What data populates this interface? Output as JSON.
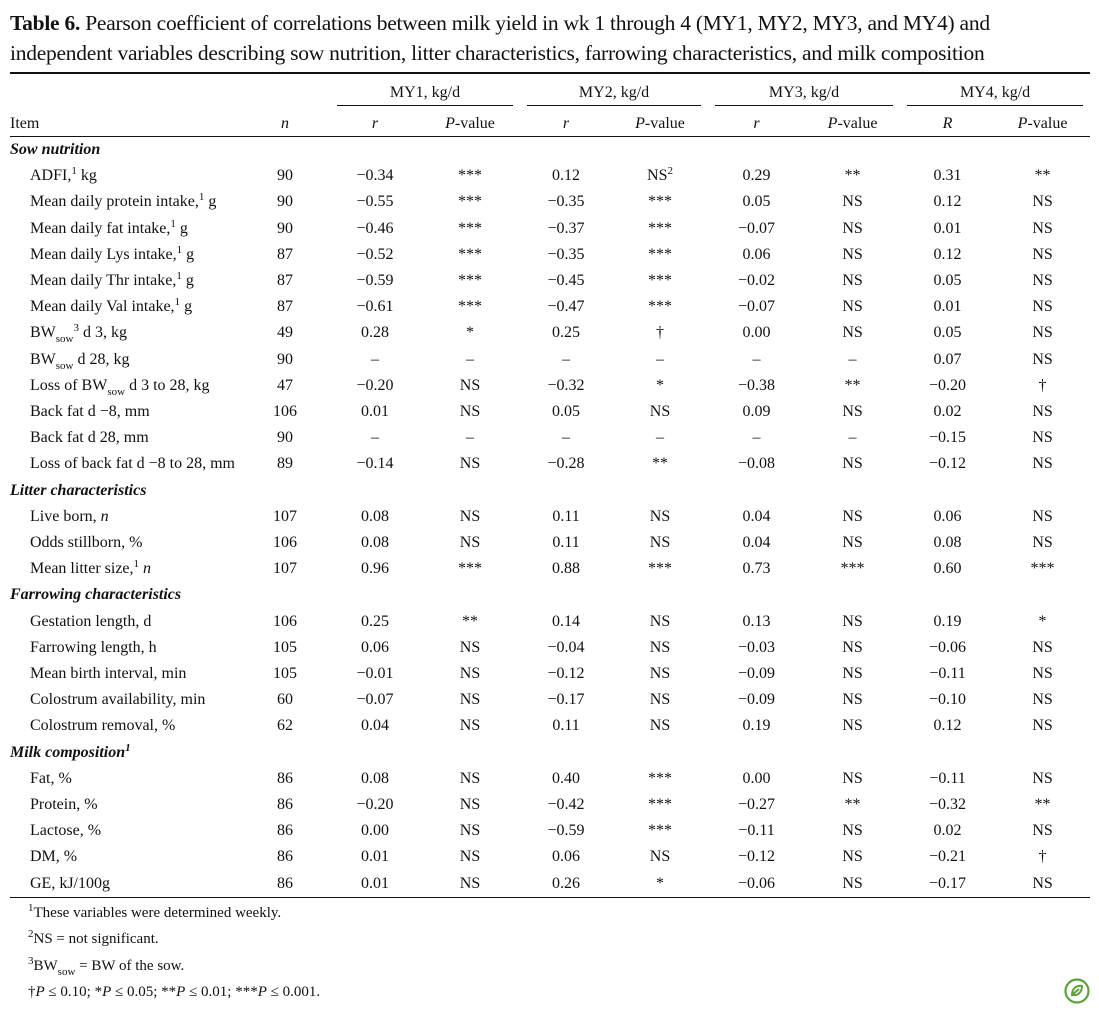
{
  "title": {
    "label": "Table 6.",
    "text": " Pearson coefficient of correlations between milk yield in wk 1 through 4 (MY1, MY2, MY3, and MY4) and independent variables describing sow nutrition, litter characteristics, farrowing characteristics, and milk composition"
  },
  "header": {
    "item": "Item",
    "n": [
      {
        "i": "n"
      }
    ],
    "groups": [
      "MY1, kg/d",
      "MY2, kg/d",
      "MY3, kg/d",
      "MY4, kg/d"
    ],
    "sub": [
      [
        {
          "i": "r"
        }
      ],
      [
        {
          "i": "P"
        },
        {
          "text": "-value"
        }
      ],
      [
        {
          "i": "r"
        }
      ],
      [
        {
          "i": "P"
        },
        {
          "text": "-value"
        }
      ],
      [
        {
          "i": "r"
        }
      ],
      [
        {
          "i": "P"
        },
        {
          "text": "-value"
        }
      ],
      [
        {
          "i": "R"
        }
      ],
      [
        {
          "i": "P"
        },
        {
          "text": "-value"
        }
      ]
    ]
  },
  "sections": [
    {
      "heading": [
        {
          "text": "Sow nutrition"
        }
      ],
      "rows": [
        {
          "item": [
            {
              "text": "ADFI,"
            },
            {
              "sup": "1"
            },
            {
              "text": " kg"
            }
          ],
          "n": "90",
          "cells": [
            "−0.34",
            "***",
            "0.12",
            [
              {
                "text": "NS"
              },
              {
                "sup": "2"
              }
            ],
            "0.29",
            "**",
            "0.31",
            "**"
          ]
        },
        {
          "item": [
            {
              "text": "Mean daily protein intake,"
            },
            {
              "sup": "1"
            },
            {
              "text": " g"
            }
          ],
          "n": "90",
          "cells": [
            "−0.55",
            "***",
            "−0.35",
            "***",
            "0.05",
            "NS",
            "0.12",
            "NS"
          ]
        },
        {
          "item": [
            {
              "text": "Mean daily fat intake,"
            },
            {
              "sup": "1"
            },
            {
              "text": " g"
            }
          ],
          "n": "90",
          "cells": [
            "−0.46",
            "***",
            "−0.37",
            "***",
            "−0.07",
            "NS",
            "0.01",
            "NS"
          ]
        },
        {
          "item": [
            {
              "text": "Mean daily Lys intake,"
            },
            {
              "sup": "1"
            },
            {
              "text": " g"
            }
          ],
          "n": "87",
          "cells": [
            "−0.52",
            "***",
            "−0.35",
            "***",
            "0.06",
            "NS",
            "0.12",
            "NS"
          ]
        },
        {
          "item": [
            {
              "text": "Mean daily Thr intake,"
            },
            {
              "sup": "1"
            },
            {
              "text": " g"
            }
          ],
          "n": "87",
          "cells": [
            "−0.59",
            "***",
            "−0.45",
            "***",
            "−0.02",
            "NS",
            "0.05",
            "NS"
          ]
        },
        {
          "item": [
            {
              "text": "Mean daily Val intake,"
            },
            {
              "sup": "1"
            },
            {
              "text": " g"
            }
          ],
          "n": "87",
          "cells": [
            "−0.61",
            "***",
            "−0.47",
            "***",
            "−0.07",
            "NS",
            "0.01",
            "NS"
          ]
        },
        {
          "item": [
            {
              "text": "BW"
            },
            {
              "sub": "sow"
            },
            {
              "sup": "3"
            },
            {
              "text": " d 3, kg"
            }
          ],
          "n": "49",
          "cells": [
            "0.28",
            "*",
            "0.25",
            "†",
            "0.00",
            "NS",
            "0.05",
            "NS"
          ]
        },
        {
          "item": [
            {
              "text": "BW"
            },
            {
              "sub": "sow"
            },
            {
              "text": " d 28, kg"
            }
          ],
          "n": "90",
          "cells": [
            "–",
            "–",
            "–",
            "–",
            "–",
            "–",
            "0.07",
            "NS"
          ]
        },
        {
          "item": [
            {
              "text": "Loss of BW"
            },
            {
              "sub": "sow"
            },
            {
              "text": " d 3 to 28, kg"
            }
          ],
          "n": "47",
          "cells": [
            "−0.20",
            "NS",
            "−0.32",
            "*",
            "−0.38",
            "**",
            "−0.20",
            "†"
          ]
        },
        {
          "item": [
            {
              "text": "Back fat d −8, mm"
            }
          ],
          "n": "106",
          "cells": [
            "0.01",
            "NS",
            "0.05",
            "NS",
            "0.09",
            "NS",
            "0.02",
            "NS"
          ]
        },
        {
          "item": [
            {
              "text": "Back fat d 28, mm"
            }
          ],
          "n": "90",
          "cells": [
            "–",
            "–",
            "–",
            "–",
            "–",
            "–",
            "−0.15",
            "NS"
          ]
        },
        {
          "item": [
            {
              "text": "Loss of back fat d −8 to 28, mm"
            }
          ],
          "n": "89",
          "cells": [
            "−0.14",
            "NS",
            "−0.28",
            "**",
            "−0.08",
            "NS",
            "−0.12",
            "NS"
          ]
        }
      ]
    },
    {
      "heading": [
        {
          "text": "Litter characteristics"
        }
      ],
      "rows": [
        {
          "item": [
            {
              "text": "Live born, "
            },
            {
              "i": "n"
            }
          ],
          "n": "107",
          "cells": [
            "0.08",
            "NS",
            "0.11",
            "NS",
            "0.04",
            "NS",
            "0.06",
            "NS"
          ]
        },
        {
          "item": [
            {
              "text": "Odds stillborn, %"
            }
          ],
          "n": "106",
          "cells": [
            "0.08",
            "NS",
            "0.11",
            "NS",
            "0.04",
            "NS",
            "0.08",
            "NS"
          ]
        },
        {
          "item": [
            {
              "text": "Mean litter size,"
            },
            {
              "sup": "1"
            },
            {
              "text": " "
            },
            {
              "i": "n"
            }
          ],
          "n": "107",
          "cells": [
            "0.96",
            "***",
            "0.88",
            "***",
            "0.73",
            "***",
            "0.60",
            "***"
          ]
        }
      ]
    },
    {
      "heading": [
        {
          "text": "Farrowing characteristics"
        }
      ],
      "rows": [
        {
          "item": [
            {
              "text": "Gestation length, d"
            }
          ],
          "n": "106",
          "cells": [
            "0.25",
            "**",
            "0.14",
            "NS",
            "0.13",
            "NS",
            "0.19",
            "*"
          ]
        },
        {
          "item": [
            {
              "text": "Farrowing length, h"
            }
          ],
          "n": "105",
          "cells": [
            "0.06",
            "NS",
            "−0.04",
            "NS",
            "−0.03",
            "NS",
            "−0.06",
            "NS"
          ]
        },
        {
          "item": [
            {
              "text": "Mean birth interval, min"
            }
          ],
          "n": "105",
          "cells": [
            "−0.01",
            "NS",
            "−0.12",
            "NS",
            "−0.09",
            "NS",
            "−0.11",
            "NS"
          ]
        },
        {
          "item": [
            {
              "text": "Colostrum availability, min"
            }
          ],
          "n": "60",
          "cells": [
            "−0.07",
            "NS",
            "−0.17",
            "NS",
            "−0.09",
            "NS",
            "−0.10",
            "NS"
          ]
        },
        {
          "item": [
            {
              "text": "Colostrum removal, %"
            }
          ],
          "n": "62",
          "cells": [
            "0.04",
            "NS",
            "0.11",
            "NS",
            "0.19",
            "NS",
            "0.12",
            "NS"
          ]
        }
      ]
    },
    {
      "heading": [
        {
          "text": "Milk composition"
        },
        {
          "sup": "1"
        }
      ],
      "rows": [
        {
          "item": [
            {
              "text": "Fat, %"
            }
          ],
          "n": "86",
          "cells": [
            "0.08",
            "NS",
            "0.40",
            "***",
            "0.00",
            "NS",
            "−0.11",
            "NS"
          ]
        },
        {
          "item": [
            {
              "text": "Protein, %"
            }
          ],
          "n": "86",
          "cells": [
            "−0.20",
            "NS",
            "−0.42",
            "***",
            "−0.27",
            "**",
            "−0.32",
            "**"
          ]
        },
        {
          "item": [
            {
              "text": "Lactose, %"
            }
          ],
          "n": "86",
          "cells": [
            "0.00",
            "NS",
            "−0.59",
            "***",
            "−0.11",
            "NS",
            "0.02",
            "NS"
          ]
        },
        {
          "item": [
            {
              "text": "DM, %"
            }
          ],
          "n": "86",
          "cells": [
            "0.01",
            "NS",
            "0.06",
            "NS",
            "−0.12",
            "NS",
            "−0.21",
            "†"
          ]
        },
        {
          "item": [
            {
              "text": "GE, kJ/100g"
            }
          ],
          "n": "86",
          "cells": [
            "0.01",
            "NS",
            "0.26",
            "*",
            "−0.06",
            "NS",
            "−0.17",
            "NS"
          ]
        }
      ]
    }
  ],
  "footnotes": [
    [
      {
        "sup": "1"
      },
      {
        "text": "These variables were determined weekly."
      }
    ],
    [
      {
        "sup": "2"
      },
      {
        "text": "NS = not significant."
      }
    ],
    [
      {
        "sup": "3"
      },
      {
        "text": "BW"
      },
      {
        "sub": "sow"
      },
      {
        "text": " = BW of the sow."
      }
    ],
    [
      {
        "text": "†"
      },
      {
        "i": "P"
      },
      {
        "text": " ≤ 0.10; *"
      },
      {
        "i": "P"
      },
      {
        "text": " ≤ 0.05; **"
      },
      {
        "i": "P"
      },
      {
        "text": " ≤ 0.01; ***"
      },
      {
        "i": "P"
      },
      {
        "text": " ≤ 0.001."
      }
    ]
  ]
}
